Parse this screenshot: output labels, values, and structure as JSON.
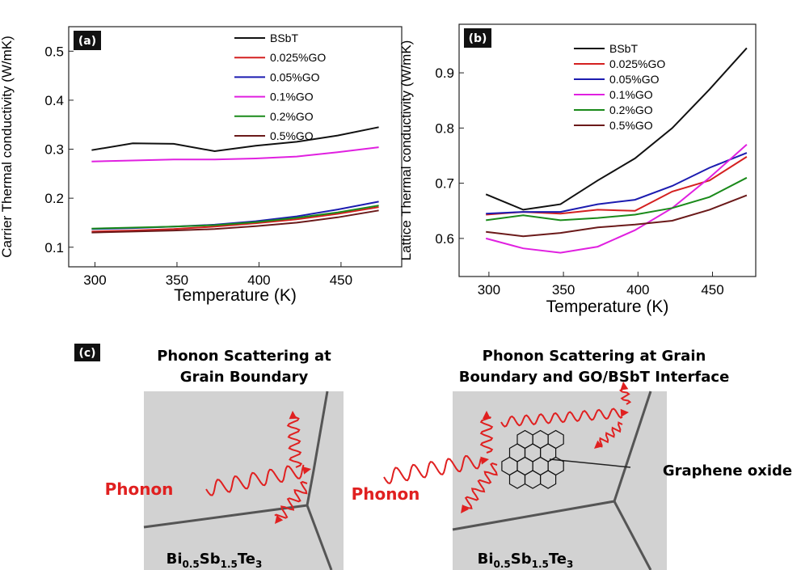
{
  "chart_data": [
    {
      "type": "line",
      "panel": "(a)",
      "x_label": "Temperature (K)",
      "y_label": "Carrier Thermal conductivity (W/mK)",
      "x": [
        298,
        323,
        348,
        373,
        398,
        423,
        448,
        473
      ],
      "xlim": [
        284,
        487
      ],
      "xticks": [
        300,
        350,
        400,
        450
      ],
      "ylim": [
        0.06,
        0.55
      ],
      "yticks": [
        0.1,
        0.2,
        0.3,
        0.4,
        0.5
      ],
      "series": [
        {
          "name": "BSbT",
          "color": "#111111",
          "values": [
            0.298,
            0.312,
            0.311,
            0.296,
            0.307,
            0.315,
            0.328,
            0.345
          ]
        },
        {
          "name": "0.025%GO",
          "color": "#d42020",
          "values": [
            0.132,
            0.134,
            0.137,
            0.142,
            0.149,
            0.157,
            0.168,
            0.182
          ]
        },
        {
          "name": "0.05%GO",
          "color": "#1c1cb0",
          "values": [
            0.137,
            0.139,
            0.142,
            0.146,
            0.153,
            0.163,
            0.177,
            0.193
          ]
        },
        {
          "name": "0.1%GO",
          "color": "#e020e0",
          "values": [
            0.275,
            0.277,
            0.279,
            0.279,
            0.281,
            0.285,
            0.294,
            0.304
          ]
        },
        {
          "name": "0.2%GO",
          "color": "#1a8a1a",
          "values": [
            0.138,
            0.14,
            0.142,
            0.145,
            0.151,
            0.16,
            0.171,
            0.185
          ]
        },
        {
          "name": "0.5%GO",
          "color": "#6b1a1a",
          "values": [
            0.13,
            0.132,
            0.134,
            0.137,
            0.143,
            0.15,
            0.161,
            0.175
          ]
        }
      ]
    },
    {
      "type": "line",
      "panel": "(b)",
      "x_label": "Temperature (K)",
      "y_label": "Lattice Thermal conductivity (W/mK)",
      "x": [
        298,
        323,
        348,
        373,
        398,
        423,
        448,
        473
      ],
      "xlim": [
        280,
        479
      ],
      "xticks": [
        300,
        350,
        400,
        450
      ],
      "ylim": [
        0.531,
        0.988
      ],
      "yticks": [
        0.6,
        0.7,
        0.8,
        0.9
      ],
      "series": [
        {
          "name": "BSbT",
          "color": "#111111",
          "values": [
            0.68,
            0.652,
            0.662,
            0.705,
            0.745,
            0.8,
            0.87,
            0.945
          ]
        },
        {
          "name": "0.025%GO",
          "color": "#d42020",
          "values": [
            0.643,
            0.648,
            0.645,
            0.652,
            0.65,
            0.685,
            0.705,
            0.748
          ]
        },
        {
          "name": "0.05%GO",
          "color": "#1c1cb0",
          "values": [
            0.645,
            0.648,
            0.648,
            0.662,
            0.67,
            0.695,
            0.728,
            0.755
          ]
        },
        {
          "name": "0.1%GO",
          "color": "#e020e0",
          "values": [
            0.6,
            0.582,
            0.574,
            0.585,
            0.615,
            0.655,
            0.71,
            0.77
          ]
        },
        {
          "name": "0.2%GO",
          "color": "#1a8a1a",
          "values": [
            0.633,
            0.642,
            0.633,
            0.637,
            0.643,
            0.655,
            0.675,
            0.71
          ]
        },
        {
          "name": "0.5%GO",
          "color": "#6b1a1a",
          "values": [
            0.612,
            0.604,
            0.61,
            0.62,
            0.625,
            0.632,
            0.652,
            0.678
          ]
        }
      ]
    }
  ],
  "diagram": {
    "panel": "(c)",
    "left_title": [
      "Phonon Scattering at",
      "Grain Boundary"
    ],
    "right_title": [
      "Phonon Scattering at Grain",
      "Boundary and GO/BSbT Interface"
    ],
    "phonon": "Phonon",
    "graphene": "Graphene oxide",
    "material": [
      "Bi",
      "0.5",
      "Sb",
      "1.5",
      "Te",
      "3"
    ]
  }
}
